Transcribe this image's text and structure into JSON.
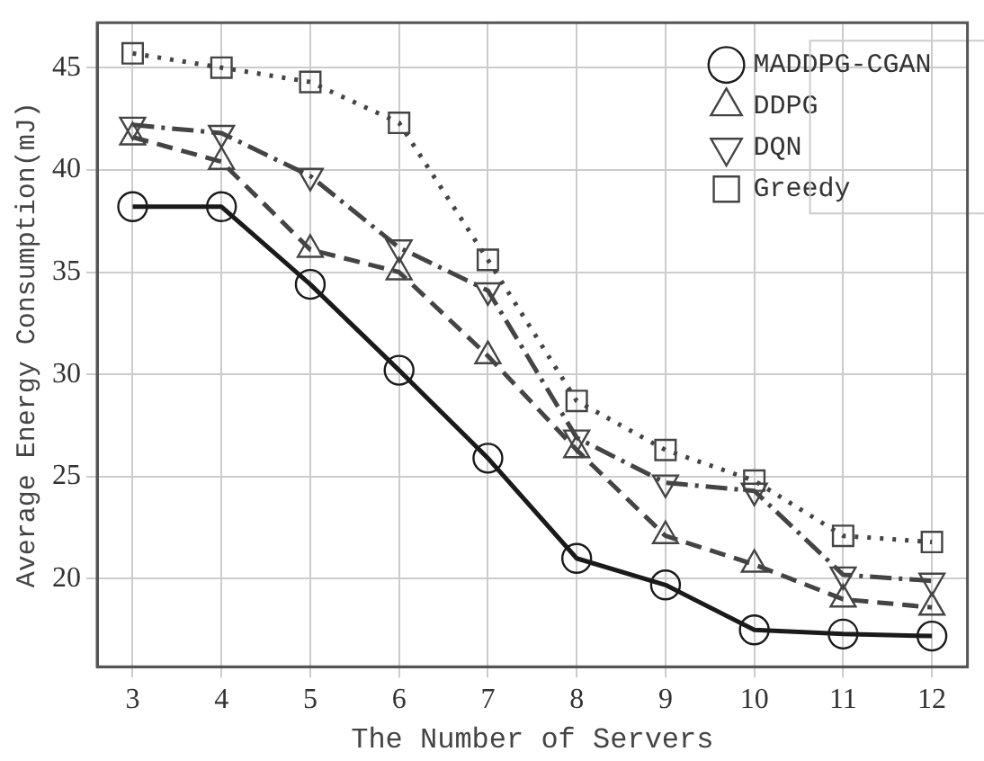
{
  "chart_data": {
    "type": "line",
    "xlabel": "The Number of Servers",
    "ylabel": "Average Energy Consumption(mJ)",
    "x": [
      3,
      4,
      5,
      6,
      7,
      8,
      9,
      10,
      11,
      12
    ],
    "series": [
      {
        "name": "MADDPG-CGAN",
        "color": "#1a1a1a",
        "marker": "circle",
        "line_style": "solid",
        "values": [
          38.2,
          38.2,
          34.4,
          30.2,
          25.9,
          21.0,
          19.7,
          17.5,
          17.3,
          17.2
        ]
      },
      {
        "name": "DDPG",
        "color": "#444444",
        "marker": "triangle",
        "line_style": "dashed",
        "values": [
          41.6,
          40.4,
          36.1,
          35.0,
          30.9,
          26.3,
          22.1,
          20.7,
          19.0,
          18.6
        ]
      },
      {
        "name": "DQN",
        "color": "#444444",
        "marker": "triangle-down",
        "line_style": "dashdot",
        "values": [
          42.2,
          41.8,
          39.7,
          36.2,
          34.1,
          26.9,
          24.7,
          24.3,
          20.2,
          19.9
        ]
      },
      {
        "name": "Greedy",
        "color": "#444444",
        "marker": "square",
        "line_style": "dotted",
        "values": [
          45.7,
          45.0,
          44.3,
          42.3,
          35.6,
          28.7,
          26.3,
          24.8,
          22.1,
          21.8
        ]
      }
    ],
    "xlim": [
      2.6,
      12.4
    ],
    "xticks": [
      3,
      4,
      5,
      6,
      7,
      8,
      9,
      10,
      11,
      12
    ],
    "ylim": [
      15.7,
      47.2
    ],
    "yticks": [
      20,
      25,
      30,
      35,
      40,
      45
    ],
    "grid": true,
    "legend": "top right"
  }
}
